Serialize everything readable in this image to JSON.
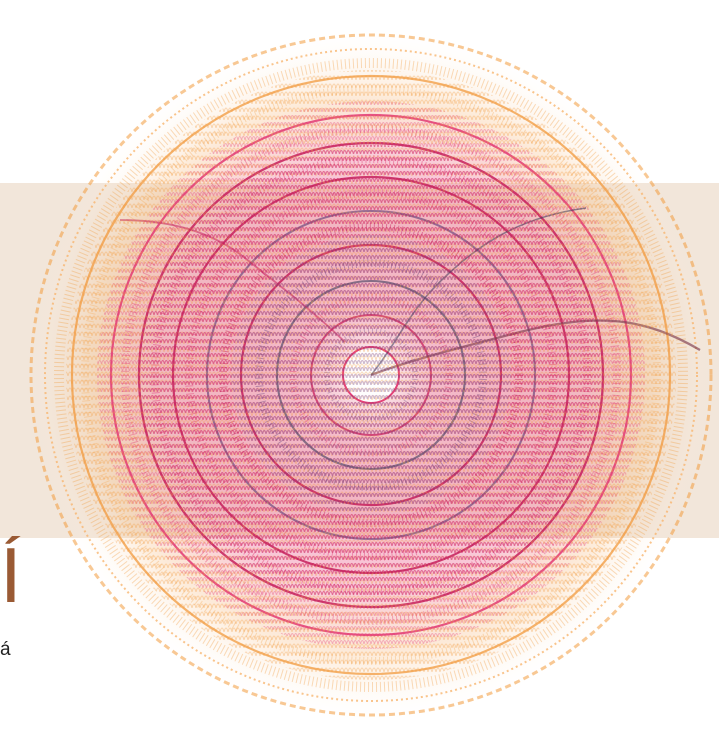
{
  "text": {
    "accent_glyph": "Í",
    "small_glyph": "á"
  },
  "icons": {
    "artwork": "wire-knit-spiral-icon"
  },
  "colors": {
    "background": "#ffffff",
    "band": "#f2e6da",
    "accent": "#9a5a34",
    "text": "#222222",
    "wire_outer_orange": "#f29a3d",
    "wire_peach": "#f7b56f",
    "wire_pink": "#e23a73",
    "wire_magenta": "#c51f5c",
    "wire_purple": "#6f4a7e",
    "wire_navy": "#3b3a5a"
  }
}
